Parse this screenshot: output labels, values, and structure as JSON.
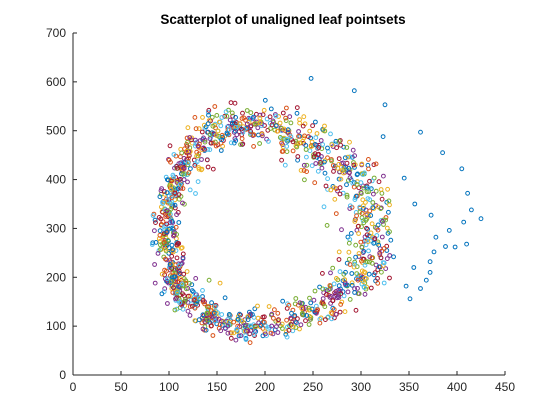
{
  "chart_data": {
    "type": "scatter",
    "title": "Scatterplot of unaligned leaf pointsets",
    "xlabel": "",
    "ylabel": "",
    "xlim": [
      0,
      450
    ],
    "ylim": [
      0,
      700
    ],
    "xticks": [
      0,
      50,
      100,
      150,
      200,
      250,
      300,
      350,
      400,
      450
    ],
    "yticks": [
      0,
      100,
      200,
      300,
      400,
      500,
      600,
      700
    ],
    "grid": false,
    "legend": "none",
    "marker": "open-circle",
    "series_colors": [
      "#0072BD",
      "#D95319",
      "#EDB120",
      "#7E2F8E",
      "#77AC30",
      "#4DBEEE",
      "#A2142F"
    ],
    "point_count": 1400,
    "shape": "ring",
    "ring_center": [
      185,
      290
    ],
    "outer_points": [
      {
        "x": 248,
        "y": 607
      },
      {
        "x": 293,
        "y": 582
      },
      {
        "x": 325,
        "y": 553
      },
      {
        "x": 362,
        "y": 497
      },
      {
        "x": 385,
        "y": 455
      },
      {
        "x": 405,
        "y": 422
      },
      {
        "x": 411,
        "y": 372
      },
      {
        "x": 415,
        "y": 338
      },
      {
        "x": 425,
        "y": 320
      },
      {
        "x": 407,
        "y": 313
      },
      {
        "x": 373,
        "y": 327
      },
      {
        "x": 392,
        "y": 296
      },
      {
        "x": 378,
        "y": 282
      },
      {
        "x": 388,
        "y": 263
      },
      {
        "x": 376,
        "y": 252
      },
      {
        "x": 398,
        "y": 262
      },
      {
        "x": 410,
        "y": 268
      },
      {
        "x": 372,
        "y": 232
      },
      {
        "x": 372,
        "y": 210
      },
      {
        "x": 368,
        "y": 194
      },
      {
        "x": 347,
        "y": 182
      },
      {
        "x": 355,
        "y": 220
      },
      {
        "x": 362,
        "y": 177
      },
      {
        "x": 351,
        "y": 156
      },
      {
        "x": 356,
        "y": 350
      },
      {
        "x": 345,
        "y": 403
      },
      {
        "x": 323,
        "y": 488
      },
      {
        "x": 331,
        "y": 276
      },
      {
        "x": 334,
        "y": 242
      }
    ]
  }
}
